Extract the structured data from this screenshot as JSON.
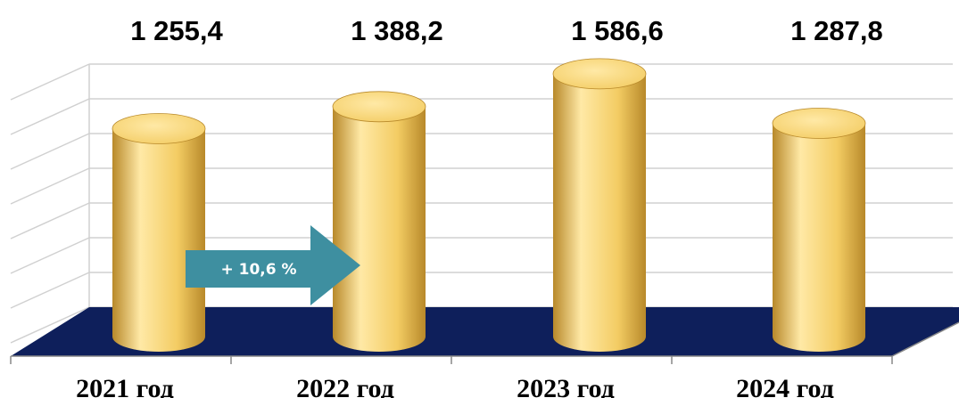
{
  "chart_data": {
    "type": "bar",
    "style": "3d-cylinder",
    "categories": [
      "2021 год",
      "2022 год",
      "2023 год",
      "2024 год"
    ],
    "values": [
      1255.4,
      1388.2,
      1586.6,
      1287.8
    ],
    "value_labels": [
      "1 255,4",
      "1 388,2",
      "1 586,6",
      "1 287,8"
    ],
    "annotation": "+ 10,6 %",
    "grid": true,
    "legend": "none"
  },
  "colors": {
    "bar_light": "#ffe9a6",
    "bar_main": "#f3cc63",
    "bar_dark": "#b8892a",
    "floor": "#0e1f5b",
    "gridline": "#d0d0d0",
    "arrow": "#3e8fa0",
    "axis": "#888888"
  }
}
